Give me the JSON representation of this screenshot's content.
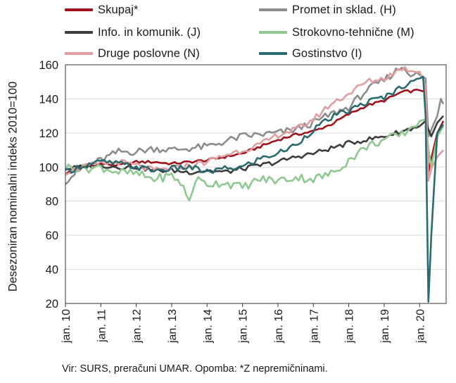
{
  "chart_data": {
    "type": "line",
    "ylabel": "Desezoniran nominalni indeks 2010=100",
    "ylim": [
      20,
      160
    ],
    "yticks": [
      20,
      40,
      60,
      80,
      100,
      120,
      140,
      160
    ],
    "xlim": [
      2010,
      2020.75
    ],
    "xticks": [
      {
        "x": 2010,
        "label": "jan. 10"
      },
      {
        "x": 2011,
        "label": "jan. 11"
      },
      {
        "x": 2012,
        "label": "jan. 12"
      },
      {
        "x": 2013,
        "label": "jan. 13"
      },
      {
        "x": 2014,
        "label": "jan. 14"
      },
      {
        "x": 2015,
        "label": "jan. 15"
      },
      {
        "x": 2016,
        "label": "jan. 16"
      },
      {
        "x": 2017,
        "label": "jan. 17"
      },
      {
        "x": 2018,
        "label": "jan. 18"
      },
      {
        "x": 2019,
        "label": "jan. 19"
      },
      {
        "x": 2020,
        "label": "jan. 20"
      }
    ],
    "grid": "horizontal",
    "legend_position": "top",
    "series": [
      {
        "name": "Skupaj*",
        "color": "#a0131c",
        "points": [
          [
            2010,
            96
          ],
          [
            2010.5,
            100
          ],
          [
            2011,
            102
          ],
          [
            2011.5,
            101
          ],
          [
            2012,
            103
          ],
          [
            2012.5,
            103
          ],
          [
            2013,
            102
          ],
          [
            2013.5,
            103
          ],
          [
            2014,
            104
          ],
          [
            2014.5,
            106
          ],
          [
            2015,
            108
          ],
          [
            2015.5,
            112
          ],
          [
            2016,
            116
          ],
          [
            2016.5,
            119
          ],
          [
            2017,
            121
          ],
          [
            2017.5,
            125
          ],
          [
            2018,
            131
          ],
          [
            2018.5,
            136
          ],
          [
            2019,
            139
          ],
          [
            2019.5,
            144
          ],
          [
            2020,
            145
          ],
          [
            2020.17,
            144
          ],
          [
            2020.25,
            97
          ],
          [
            2020.33,
            105
          ],
          [
            2020.5,
            120
          ],
          [
            2020.67,
            127
          ]
        ]
      },
      {
        "name": "Promet in sklad. (H)",
        "color": "#8c8c8c",
        "points": [
          [
            2010,
            92
          ],
          [
            2010.5,
            100
          ],
          [
            2011,
            104
          ],
          [
            2011.5,
            109
          ],
          [
            2012,
            109
          ],
          [
            2012.5,
            111
          ],
          [
            2013,
            110
          ],
          [
            2013.5,
            111
          ],
          [
            2014,
            112
          ],
          [
            2014.5,
            115
          ],
          [
            2015,
            118
          ],
          [
            2015.5,
            119
          ],
          [
            2016,
            120
          ],
          [
            2016.5,
            122
          ],
          [
            2017,
            126
          ],
          [
            2017.5,
            131
          ],
          [
            2018,
            135
          ],
          [
            2018.5,
            145
          ],
          [
            2019,
            151
          ],
          [
            2019.5,
            159
          ],
          [
            2019.75,
            155
          ],
          [
            2020,
            154
          ],
          [
            2020.17,
            152
          ],
          [
            2020.25,
            118
          ],
          [
            2020.33,
            122
          ],
          [
            2020.5,
            130
          ],
          [
            2020.6,
            140
          ],
          [
            2020.67,
            137
          ]
        ]
      },
      {
        "name": "Info. in komunik. (J)",
        "color": "#3c3c3c",
        "points": [
          [
            2010,
            99
          ],
          [
            2010.5,
            100
          ],
          [
            2011,
            101
          ],
          [
            2011.5,
            100
          ],
          [
            2012,
            100
          ],
          [
            2012.5,
            98
          ],
          [
            2013,
            98
          ],
          [
            2013.5,
            97
          ],
          [
            2014,
            98
          ],
          [
            2014.5,
            97
          ],
          [
            2015,
            99
          ],
          [
            2015.5,
            101
          ],
          [
            2016,
            103
          ],
          [
            2016.5,
            106
          ],
          [
            2017,
            108
          ],
          [
            2017.5,
            111
          ],
          [
            2018,
            114
          ],
          [
            2018.5,
            116
          ],
          [
            2019,
            118
          ],
          [
            2019.5,
            121
          ],
          [
            2020,
            124
          ],
          [
            2020.17,
            127
          ],
          [
            2020.25,
            122
          ],
          [
            2020.33,
            118
          ],
          [
            2020.5,
            126
          ],
          [
            2020.67,
            130
          ]
        ]
      },
      {
        "name": "Strokovno-tehnične (M)",
        "color": "#8ec88f",
        "points": [
          [
            2010,
            100
          ],
          [
            2010.5,
            99
          ],
          [
            2011,
            100
          ],
          [
            2011.5,
            97
          ],
          [
            2012,
            96
          ],
          [
            2012.5,
            93
          ],
          [
            2013,
            95
          ],
          [
            2013.25,
            91
          ],
          [
            2013.5,
            80
          ],
          [
            2013.67,
            93
          ],
          [
            2014,
            90
          ],
          [
            2014.5,
            91
          ],
          [
            2015,
            88
          ],
          [
            2015.5,
            93
          ],
          [
            2016,
            92
          ],
          [
            2016.5,
            94
          ],
          [
            2017,
            93
          ],
          [
            2017.5,
            96
          ],
          [
            2018,
            104
          ],
          [
            2018.5,
            112
          ],
          [
            2019,
            116
          ],
          [
            2019.5,
            119
          ],
          [
            2020,
            127
          ],
          [
            2020.17,
            128
          ],
          [
            2020.25,
            111
          ],
          [
            2020.33,
            100
          ],
          [
            2020.5,
            118
          ],
          [
            2020.67,
            124
          ]
        ]
      },
      {
        "name": "Druge poslovne (N)",
        "color": "#e19e9e",
        "points": [
          [
            2010,
            97
          ],
          [
            2010.5,
            100
          ],
          [
            2011,
            102
          ],
          [
            2011.5,
            103
          ],
          [
            2012,
            101
          ],
          [
            2012.5,
            98
          ],
          [
            2013,
            99
          ],
          [
            2013.5,
            101
          ],
          [
            2014,
            103
          ],
          [
            2014.5,
            107
          ],
          [
            2015,
            110
          ],
          [
            2015.5,
            113
          ],
          [
            2016,
            119
          ],
          [
            2016.5,
            122
          ],
          [
            2017,
            128
          ],
          [
            2017.5,
            137
          ],
          [
            2018,
            143
          ],
          [
            2018.5,
            150
          ],
          [
            2019,
            152
          ],
          [
            2019.5,
            158
          ],
          [
            2019.75,
            157
          ],
          [
            2020,
            156
          ],
          [
            2020.17,
            148
          ],
          [
            2020.25,
            92
          ],
          [
            2020.33,
            99
          ],
          [
            2020.5,
            106
          ],
          [
            2020.67,
            110
          ]
        ]
      },
      {
        "name": "Gostinstvo (I)",
        "color": "#2a6b6f",
        "points": [
          [
            2010,
            97
          ],
          [
            2010.5,
            101
          ],
          [
            2011,
            103
          ],
          [
            2011.5,
            102
          ],
          [
            2012,
            100
          ],
          [
            2012.5,
            98
          ],
          [
            2013,
            99
          ],
          [
            2013.5,
            100
          ],
          [
            2014,
            97
          ],
          [
            2014.5,
            99
          ],
          [
            2015,
            100
          ],
          [
            2015.5,
            105
          ],
          [
            2016,
            108
          ],
          [
            2016.5,
            113
          ],
          [
            2017,
            122
          ],
          [
            2017.5,
            129
          ],
          [
            2018,
            133
          ],
          [
            2018.5,
            138
          ],
          [
            2019,
            141
          ],
          [
            2019.5,
            147
          ],
          [
            2019.75,
            151
          ],
          [
            2020,
            152
          ],
          [
            2020.1,
            153
          ],
          [
            2020.17,
            130
          ],
          [
            2020.25,
            21
          ],
          [
            2020.33,
            60
          ],
          [
            2020.5,
            120
          ],
          [
            2020.67,
            125
          ]
        ]
      }
    ]
  },
  "source": "Vir: SURS, preračuni UMAR. Opomba: *Z nepremičninami."
}
